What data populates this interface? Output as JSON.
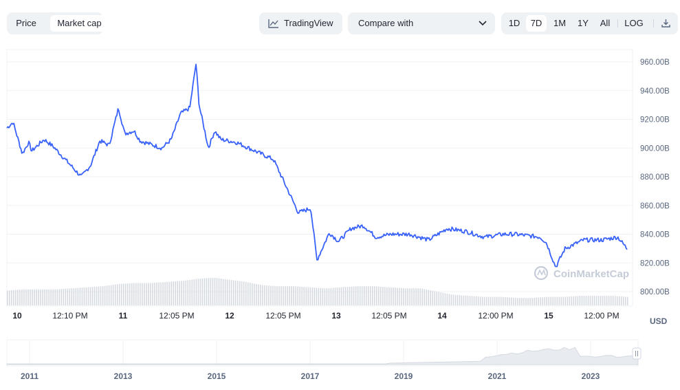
{
  "toolbar": {
    "toggle": [
      "Price",
      "Market cap"
    ],
    "toggle_active": "Market cap",
    "tradingview_label": "TradingView",
    "compare_label": "Compare with",
    "ranges": [
      "1D",
      "7D",
      "1M",
      "1Y",
      "All"
    ],
    "range_active": "7D",
    "log_label": "LOG",
    "download_icon": "download-icon",
    "chevron_icon": "chevron-down-icon",
    "tradingview_icon": "chart-line-icon"
  },
  "chart_data": {
    "type": "line",
    "title": "",
    "ylabel": "USD",
    "ylim": [
      795,
      965
    ],
    "y_ticks": [
      "960.00B",
      "940.00B",
      "920.00B",
      "900.00B",
      "880.00B",
      "860.00B",
      "840.00B",
      "820.00B",
      "800.00B"
    ],
    "x_ticks": [
      "10",
      "12:10 PM",
      "11",
      "12:05 PM",
      "12",
      "12:05 PM",
      "13",
      "12:05 PM",
      "14",
      "12:00 PM",
      "15",
      "12:00 PM"
    ],
    "series": [
      {
        "name": "",
        "color": "#3861fb",
        "x": [
          0,
          0.01,
          0.025,
          0.035,
          0.04,
          0.06,
          0.075,
          0.09,
          0.12,
          0.135,
          0.15,
          0.165,
          0.18,
          0.19,
          0.205,
          0.215,
          0.25,
          0.265,
          0.28,
          0.295,
          0.305,
          0.31,
          0.325,
          0.335,
          0.345,
          0.37,
          0.39,
          0.43,
          0.47,
          0.49,
          0.5,
          0.52,
          0.535,
          0.555,
          0.575,
          0.595,
          0.62,
          0.65,
          0.68,
          0.71,
          0.74,
          0.77,
          0.8,
          0.82,
          0.86,
          0.87,
          0.885,
          0.9,
          0.93,
          0.96,
          0.985,
          1
        ],
        "values": [
          914,
          918,
          896,
          904,
          898,
          906,
          901,
          894,
          880,
          888,
          905,
          902,
          928,
          910,
          912,
          905,
          900,
          906,
          924,
          928,
          959,
          930,
          900,
          912,
          906,
          904,
          900,
          892,
          855,
          858,
          822,
          841,
          835,
          844,
          846,
          838,
          840,
          840,
          836,
          844,
          842,
          838,
          840,
          840,
          838,
          834,
          817,
          830,
          836,
          836,
          838,
          830
        ]
      }
    ],
    "volume": [
      14,
      15,
      15,
      15,
      16,
      17,
      18,
      20,
      21,
      21,
      22,
      23,
      25,
      26,
      24,
      22,
      19,
      18,
      18,
      17,
      16,
      17,
      18,
      18,
      17,
      16,
      16,
      13,
      10,
      9,
      8,
      8,
      7,
      7,
      8,
      8,
      9,
      9,
      9,
      8
    ],
    "navigator": {
      "x_ticks": [
        "2011",
        "2013",
        "2015",
        "2017",
        "2019",
        "2021",
        "2023"
      ]
    },
    "watermark": "CoinMarketCap",
    "grid": true
  }
}
